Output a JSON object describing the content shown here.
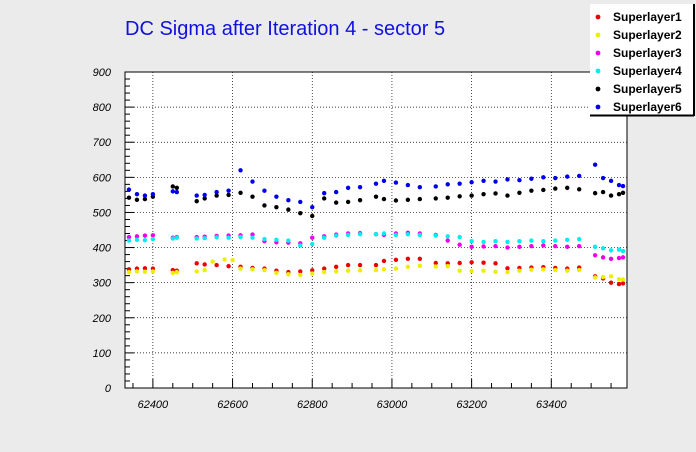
{
  "chart_data": {
    "type": "scatter",
    "title": "DC Sigma after Iteration 4 - sector 5",
    "xlabel": "",
    "ylabel": "",
    "xlim": [
      62330,
      63590
    ],
    "ylim": [
      0,
      900
    ],
    "x_ticks": [
      62400,
      62600,
      62800,
      63000,
      63200,
      63400
    ],
    "y_ticks": [
      0,
      100,
      200,
      300,
      400,
      500,
      600,
      700,
      800,
      900
    ],
    "grid": true,
    "legend_position": "top-right",
    "series": [
      {
        "name": "Superlayer1",
        "color": "#ee0000",
        "points": [
          [
            62340,
            338
          ],
          [
            62360,
            340
          ],
          [
            62380,
            341
          ],
          [
            62400,
            340
          ],
          [
            62450,
            336
          ],
          [
            62460,
            334
          ],
          [
            62510,
            355
          ],
          [
            62530,
            352
          ],
          [
            62560,
            350
          ],
          [
            62590,
            347
          ],
          [
            62620,
            345
          ],
          [
            62650,
            342
          ],
          [
            62680,
            340
          ],
          [
            62710,
            334
          ],
          [
            62740,
            330
          ],
          [
            62770,
            332
          ],
          [
            62800,
            335
          ],
          [
            62830,
            340
          ],
          [
            62860,
            345
          ],
          [
            62890,
            350
          ],
          [
            62920,
            350
          ],
          [
            62960,
            350
          ],
          [
            62980,
            362
          ],
          [
            63010,
            365
          ],
          [
            63040,
            368
          ],
          [
            63070,
            368
          ],
          [
            63110,
            356
          ],
          [
            63140,
            355
          ],
          [
            63170,
            356
          ],
          [
            63200,
            358
          ],
          [
            63230,
            357
          ],
          [
            63260,
            355
          ],
          [
            63290,
            341
          ],
          [
            63320,
            342
          ],
          [
            63350,
            343
          ],
          [
            63380,
            344
          ],
          [
            63410,
            342
          ],
          [
            63440,
            340
          ],
          [
            63470,
            343
          ],
          [
            63510,
            318
          ],
          [
            63530,
            312
          ],
          [
            63550,
            300
          ],
          [
            63570,
            296
          ],
          [
            63580,
            298
          ]
        ]
      },
      {
        "name": "Superlayer2",
        "color": "#eeee00",
        "points": [
          [
            62340,
            330
          ],
          [
            62360,
            332
          ],
          [
            62380,
            331
          ],
          [
            62400,
            332
          ],
          [
            62450,
            328
          ],
          [
            62460,
            330
          ],
          [
            62510,
            332
          ],
          [
            62530,
            336
          ],
          [
            62550,
            360
          ],
          [
            62580,
            366
          ],
          [
            62600,
            364
          ],
          [
            62620,
            340
          ],
          [
            62650,
            338
          ],
          [
            62680,
            336
          ],
          [
            62710,
            328
          ],
          [
            62740,
            324
          ],
          [
            62770,
            322
          ],
          [
            62800,
            326
          ],
          [
            62830,
            330
          ],
          [
            62860,
            332
          ],
          [
            62890,
            334
          ],
          [
            62920,
            335
          ],
          [
            62960,
            336
          ],
          [
            62980,
            338
          ],
          [
            63010,
            340
          ],
          [
            63040,
            345
          ],
          [
            63070,
            348
          ],
          [
            63110,
            346
          ],
          [
            63140,
            347
          ],
          [
            63170,
            334
          ],
          [
            63200,
            333
          ],
          [
            63230,
            334
          ],
          [
            63260,
            331
          ],
          [
            63290,
            330
          ],
          [
            63320,
            334
          ],
          [
            63350,
            337
          ],
          [
            63380,
            338
          ],
          [
            63410,
            336
          ],
          [
            63440,
            334
          ],
          [
            63470,
            336
          ],
          [
            63510,
            315
          ],
          [
            63530,
            316
          ],
          [
            63550,
            318
          ],
          [
            63570,
            310
          ],
          [
            63580,
            309
          ]
        ]
      },
      {
        "name": "Superlayer3",
        "color": "#ee00ee",
        "points": [
          [
            62340,
            430
          ],
          [
            62360,
            432
          ],
          [
            62380,
            434
          ],
          [
            62400,
            435
          ],
          [
            62450,
            428
          ],
          [
            62460,
            430
          ],
          [
            62510,
            430
          ],
          [
            62530,
            431
          ],
          [
            62560,
            433
          ],
          [
            62590,
            434
          ],
          [
            62620,
            435
          ],
          [
            62650,
            437
          ],
          [
            62680,
            418
          ],
          [
            62710,
            415
          ],
          [
            62740,
            414
          ],
          [
            62770,
            412
          ],
          [
            62800,
            428
          ],
          [
            62830,
            432
          ],
          [
            62860,
            437
          ],
          [
            62890,
            440
          ],
          [
            62920,
            441
          ],
          [
            62960,
            438
          ],
          [
            62980,
            436
          ],
          [
            63010,
            440
          ],
          [
            63040,
            442
          ],
          [
            63070,
            440
          ],
          [
            63110,
            436
          ],
          [
            63140,
            420
          ],
          [
            63170,
            408
          ],
          [
            63200,
            402
          ],
          [
            63230,
            403
          ],
          [
            63260,
            404
          ],
          [
            63290,
            400
          ],
          [
            63320,
            402
          ],
          [
            63350,
            404
          ],
          [
            63380,
            406
          ],
          [
            63410,
            404
          ],
          [
            63440,
            402
          ],
          [
            63470,
            404
          ],
          [
            63510,
            378
          ],
          [
            63530,
            372
          ],
          [
            63550,
            368
          ],
          [
            63570,
            370
          ],
          [
            63580,
            372
          ]
        ]
      },
      {
        "name": "Superlayer4",
        "color": "#00eeee",
        "points": [
          [
            62340,
            420
          ],
          [
            62360,
            422
          ],
          [
            62380,
            421
          ],
          [
            62400,
            424
          ],
          [
            62450,
            426
          ],
          [
            62460,
            428
          ],
          [
            62510,
            426
          ],
          [
            62530,
            427
          ],
          [
            62560,
            429
          ],
          [
            62590,
            428
          ],
          [
            62620,
            430
          ],
          [
            62650,
            428
          ],
          [
            62680,
            424
          ],
          [
            62710,
            422
          ],
          [
            62740,
            420
          ],
          [
            62770,
            406
          ],
          [
            62800,
            410
          ],
          [
            62830,
            428
          ],
          [
            62860,
            434
          ],
          [
            62890,
            436
          ],
          [
            62920,
            438
          ],
          [
            62960,
            438
          ],
          [
            62980,
            440
          ],
          [
            63010,
            436
          ],
          [
            63040,
            438
          ],
          [
            63070,
            436
          ],
          [
            63110,
            434
          ],
          [
            63140,
            432
          ],
          [
            63170,
            430
          ],
          [
            63200,
            418
          ],
          [
            63230,
            416
          ],
          [
            63260,
            418
          ],
          [
            63290,
            416
          ],
          [
            63320,
            418
          ],
          [
            63350,
            420
          ],
          [
            63380,
            418
          ],
          [
            63410,
            420
          ],
          [
            63440,
            422
          ],
          [
            63470,
            424
          ],
          [
            63510,
            402
          ],
          [
            63530,
            398
          ],
          [
            63550,
            392
          ],
          [
            63570,
            394
          ],
          [
            63580,
            390
          ]
        ]
      },
      {
        "name": "Superlayer5",
        "color": "#000000",
        "points": [
          [
            62340,
            542
          ],
          [
            62360,
            536
          ],
          [
            62380,
            538
          ],
          [
            62400,
            545
          ],
          [
            62450,
            574
          ],
          [
            62460,
            570
          ],
          [
            62510,
            532
          ],
          [
            62530,
            540
          ],
          [
            62560,
            548
          ],
          [
            62590,
            550
          ],
          [
            62620,
            556
          ],
          [
            62650,
            545
          ],
          [
            62680,
            520
          ],
          [
            62710,
            515
          ],
          [
            62740,
            508
          ],
          [
            62770,
            498
          ],
          [
            62800,
            490
          ],
          [
            62830,
            540
          ],
          [
            62860,
            528
          ],
          [
            62890,
            530
          ],
          [
            62920,
            535
          ],
          [
            62960,
            545
          ],
          [
            62980,
            538
          ],
          [
            63010,
            534
          ],
          [
            63040,
            536
          ],
          [
            63070,
            538
          ],
          [
            63110,
            540
          ],
          [
            63140,
            542
          ],
          [
            63170,
            546
          ],
          [
            63200,
            548
          ],
          [
            63230,
            552
          ],
          [
            63260,
            554
          ],
          [
            63290,
            548
          ],
          [
            63320,
            556
          ],
          [
            63350,
            562
          ],
          [
            63380,
            564
          ],
          [
            63410,
            568
          ],
          [
            63440,
            570
          ],
          [
            63470,
            566
          ],
          [
            63510,
            555
          ],
          [
            63530,
            558
          ],
          [
            63550,
            548
          ],
          [
            63570,
            552
          ],
          [
            63580,
            556
          ]
        ]
      },
      {
        "name": "Superlayer6",
        "color": "#0000ee",
        "points": [
          [
            62340,
            565
          ],
          [
            62360,
            552
          ],
          [
            62380,
            548
          ],
          [
            62400,
            552
          ],
          [
            62450,
            560
          ],
          [
            62460,
            558
          ],
          [
            62510,
            548
          ],
          [
            62530,
            550
          ],
          [
            62560,
            558
          ],
          [
            62590,
            562
          ],
          [
            62620,
            620
          ],
          [
            62650,
            588
          ],
          [
            62680,
            562
          ],
          [
            62710,
            545
          ],
          [
            62740,
            535
          ],
          [
            62770,
            530
          ],
          [
            62800,
            515
          ],
          [
            62830,
            555
          ],
          [
            62860,
            558
          ],
          [
            62890,
            570
          ],
          [
            62920,
            572
          ],
          [
            62960,
            582
          ],
          [
            62980,
            590
          ],
          [
            63010,
            585
          ],
          [
            63040,
            578
          ],
          [
            63070,
            572
          ],
          [
            63110,
            574
          ],
          [
            63140,
            580
          ],
          [
            63170,
            582
          ],
          [
            63200,
            586
          ],
          [
            63230,
            590
          ],
          [
            63260,
            588
          ],
          [
            63290,
            594
          ],
          [
            63320,
            592
          ],
          [
            63350,
            596
          ],
          [
            63380,
            600
          ],
          [
            63410,
            598
          ],
          [
            63440,
            602
          ],
          [
            63470,
            604
          ],
          [
            63510,
            636
          ],
          [
            63530,
            598
          ],
          [
            63550,
            590
          ],
          [
            63570,
            578
          ],
          [
            63580,
            575
          ]
        ]
      }
    ]
  }
}
